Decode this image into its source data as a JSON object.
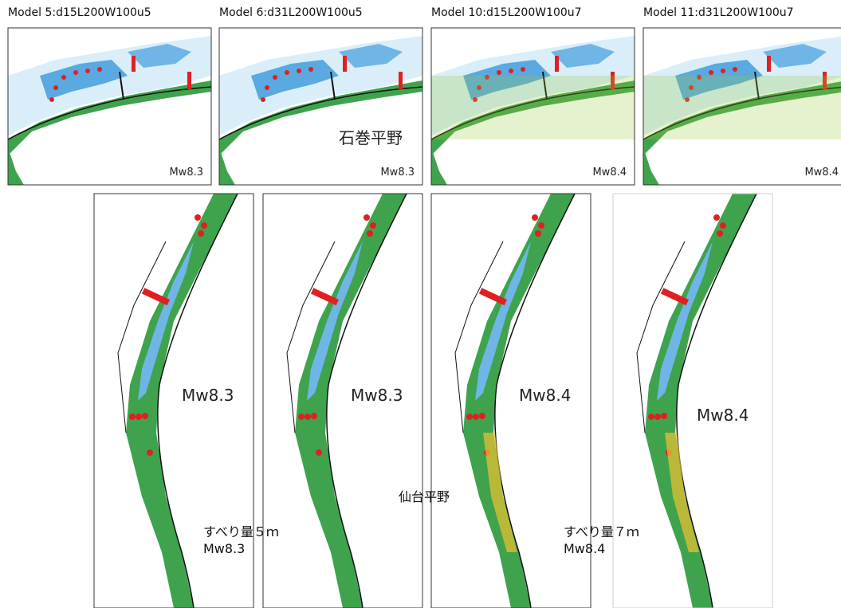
{
  "top_panels": [
    {
      "title": "Model 5:d15L200W100u5",
      "magnitude": "Mw8.3"
    },
    {
      "title": "Model 6:d31L200W100u5",
      "magnitude": "Mw8.3"
    },
    {
      "title": "Model 10:d15L200W100u7",
      "magnitude": "Mw8.4"
    },
    {
      "title": "Model 11:d31L200W100u7",
      "magnitude": "Mw8.4"
    }
  ],
  "top_annotation": "石巻平野",
  "bottom_panels": [
    {
      "magnitude": "Mw8.3"
    },
    {
      "magnitude": "Mw8.3"
    },
    {
      "magnitude": "Mw8.4"
    },
    {
      "magnitude": "Mw8.4"
    }
  ],
  "bottom_annotation": "仙台平野",
  "slip_notes": [
    {
      "slip": "すべり量５ｍ",
      "magnitude": "Mw8.3"
    },
    {
      "slip": "すべり量７ｍ",
      "magnitude": "Mw8.4"
    }
  ]
}
